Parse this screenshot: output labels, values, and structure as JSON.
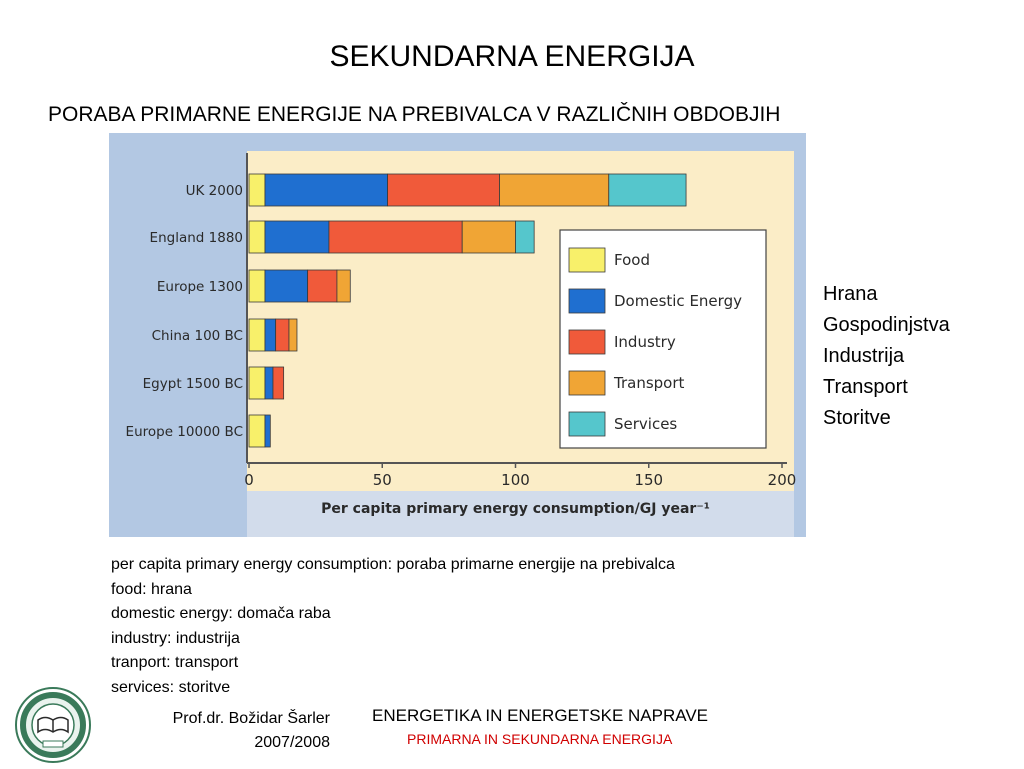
{
  "slide": {
    "title": "SEKUNDARNA ENERGIJA",
    "subtitle": "PORABA PRIMARNE ENERGIJE NA PREBIVALCA V RAZLIČNIH OBDOBJIH"
  },
  "translations": [
    "Hrana",
    "Gospodinjstva",
    "Industrija",
    "Transport",
    "Storitve"
  ],
  "glossary": [
    "per capita primary energy consumption: poraba primarne energije na prebivalca",
    "food: hrana",
    "domestic energy: domača raba",
    "industry: industrija",
    "tranport: transport",
    "services: storitve"
  ],
  "footer": {
    "author": "Prof.dr. Božidar Šarler",
    "year": "2007/2008",
    "course": "ENERGETIKA IN ENERGETSKE NAPRAVE",
    "course_sub": "PRIMARNA IN SEKUNDARNA ENERGIJA"
  },
  "chart_data": {
    "type": "bar",
    "orientation": "horizontal",
    "stacked": true,
    "categories": [
      "UK 2000",
      "England 1880",
      "Europe 1300",
      "China 100 BC",
      "Egypt 1500 BC",
      "Europe 10000 BC"
    ],
    "series": [
      {
        "name": "Food",
        "color": "#f8f06a",
        "values": [
          6,
          6,
          6,
          6,
          6,
          6
        ]
      },
      {
        "name": "Domestic Energy",
        "color": "#1f6fd0",
        "values": [
          46,
          24,
          16,
          4,
          3,
          2
        ]
      },
      {
        "name": "Industry",
        "color": "#f05a3a",
        "values": [
          42,
          50,
          11,
          5,
          4,
          0
        ]
      },
      {
        "name": "Transport",
        "color": "#f0a535",
        "values": [
          41,
          20,
          5,
          3,
          0,
          0
        ]
      },
      {
        "name": "Services",
        "color": "#55c6cc",
        "values": [
          29,
          7,
          0,
          0,
          0,
          0
        ]
      }
    ],
    "xlabel": "Per capita primary energy consumption/GJ year⁻¹",
    "xlim": [
      0,
      200
    ],
    "xticks": [
      0,
      50,
      100,
      150,
      200
    ],
    "legend_position": "right"
  }
}
